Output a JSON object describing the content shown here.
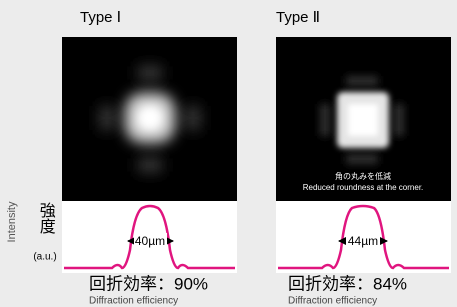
{
  "axis": {
    "english": "Intensity",
    "japanese": "強度",
    "unit": "(a.u.)"
  },
  "panels": [
    {
      "title": "Type Ⅰ",
      "width_label": "40µm",
      "efficiency": "回折効率：90%",
      "efficiency_english": "Diffraction efficiency"
    },
    {
      "title": "Type Ⅱ",
      "annotation_japanese": "角の丸みを低減",
      "annotation_english": "Reduced roundness at the corner.",
      "width_label": "44µm",
      "efficiency": "回折効率：84%",
      "efficiency_english": "Diffraction efficiency"
    }
  ]
}
